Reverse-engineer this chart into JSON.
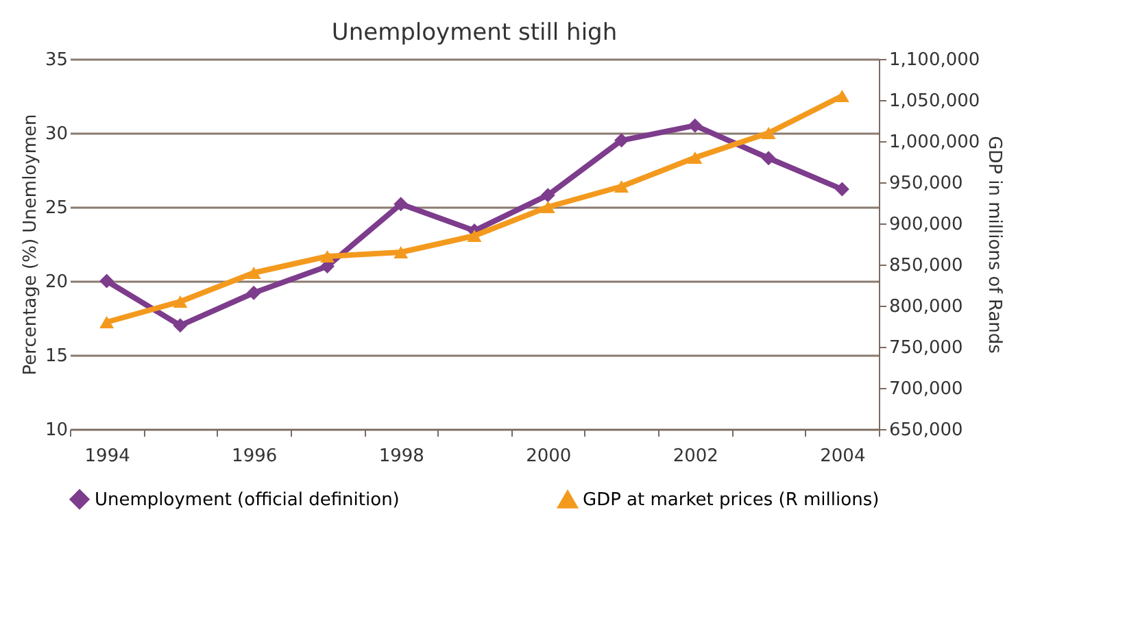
{
  "chart_data": {
    "type": "line",
    "title": "Unemployment still high",
    "ylabel": "Percentage (%) Unemloymen",
    "y2label": "GDP in millions of Rands",
    "categories": [
      "1994",
      null,
      "1996",
      null,
      "1998",
      null,
      "2000",
      null,
      "2002",
      null,
      "2004"
    ],
    "series": [
      {
        "name": "Unemployment (official definition)",
        "color": "#7d3c8c",
        "marker": "diamond",
        "values": [
          20.0,
          17.0,
          19.2,
          21.0,
          25.2,
          23.4,
          25.8,
          29.5,
          30.5,
          28.3,
          26.2
        ]
      },
      {
        "name": "GDP at market prices (R millions)",
        "color": "#f39a1e",
        "marker": "triangle",
        "axis": "y2",
        "values": [
          780000,
          805000,
          840000,
          860000,
          865000,
          885000,
          920000,
          945000,
          980000,
          1010000,
          1055000
        ]
      }
    ],
    "ylim": [
      10,
      35
    ],
    "yticks": [
      10,
      15,
      20,
      25,
      30,
      35
    ],
    "y2lim": [
      650000,
      1100000
    ],
    "y2ticks": [
      {
        "value": 650000,
        "label": "650,000"
      },
      {
        "value": 700000,
        "label": "700,000"
      },
      {
        "value": 750000,
        "label": "750,000"
      },
      {
        "value": 800000,
        "label": "800,000"
      },
      {
        "value": 850000,
        "label": "850,000"
      },
      {
        "value": 900000,
        "label": "900,000"
      },
      {
        "value": 950000,
        "label": "950,000"
      },
      {
        "value": 1000000,
        "label": "1,000,000"
      },
      {
        "value": 1050000,
        "label": "1,050,000"
      },
      {
        "value": 1100000,
        "label": "1,100,000"
      }
    ],
    "grid": "y",
    "legend": "bottom",
    "line_style": "solid"
  }
}
